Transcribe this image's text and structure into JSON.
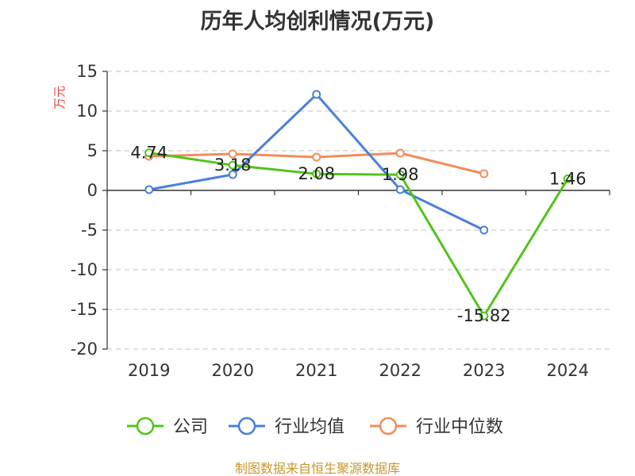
{
  "chart_data": {
    "type": "line",
    "title": "历年人均创利情况(万元)",
    "ylabel": "万元",
    "xlabel": "",
    "categories": [
      "2019",
      "2020",
      "2021",
      "2022",
      "2023",
      "2024"
    ],
    "ylim": [
      -20,
      15
    ],
    "yticks": [
      15,
      10,
      5,
      0,
      -5,
      -10,
      -15,
      -20
    ],
    "grid": true,
    "legend_position": "bottom",
    "series": [
      {
        "name": "公司",
        "color": "#52c41a",
        "values": [
          4.74,
          3.18,
          2.08,
          1.98,
          -15.82,
          1.46
        ],
        "labels": [
          "4.74",
          "3.18",
          "2.08",
          "1.98",
          "-15.82",
          "1.46"
        ]
      },
      {
        "name": "行业均值",
        "color": "#4a7fdb",
        "values": [
          0.1,
          2.0,
          12.1,
          0.1,
          -5.0,
          null
        ]
      },
      {
        "name": "行业中位数",
        "color": "#f28c5a",
        "values": [
          4.3,
          4.6,
          4.2,
          4.7,
          2.1,
          null
        ]
      }
    ]
  },
  "footer": "制图数据来自恒生聚源数据库"
}
